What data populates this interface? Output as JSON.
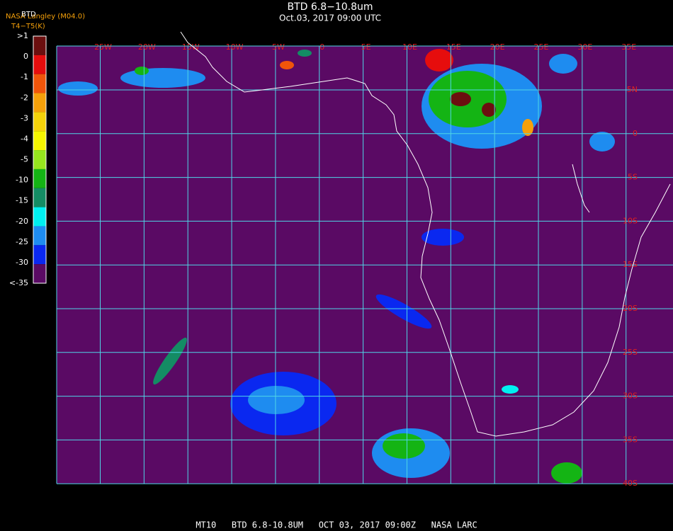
{
  "header": {
    "title": "BTD 6.8−10.8um",
    "subtitle": "Oct.03, 2017 09:00 UTC",
    "credit": "NASA Langley (M04.0)",
    "product": "BTD",
    "unit": "T4−T5(K)"
  },
  "legend": {
    "labels": [
      ">1",
      "0",
      "-1",
      "-2",
      "-3",
      "-4",
      "-5",
      "-10",
      "-15",
      "-20",
      "-25",
      "-30",
      "<-35"
    ],
    "colors": [
      "#6b0f0f",
      "#e60d0d",
      "#f0550a",
      "#f5a00a",
      "#f5d20a",
      "#f5f500",
      "#96e61e",
      "#14b414",
      "#148c64",
      "#00f0f0",
      "#1e8cf0",
      "#0a28f0",
      "#5a0a64"
    ]
  },
  "map": {
    "lon_labels": [
      "25W",
      "20W",
      "15W",
      "10W",
      "5W",
      "0",
      "5E",
      "10E",
      "15E",
      "20E",
      "25E",
      "30E",
      "35E"
    ],
    "lat_labels": [
      "5N",
      "0",
      "5S",
      "10S",
      "15S",
      "20S",
      "25S",
      "30S",
      "35S",
      "40S"
    ]
  },
  "footer": "MT10   BTD 6.8-10.8UM   OCT 03, 2017 09:00Z   NASA LARC"
}
